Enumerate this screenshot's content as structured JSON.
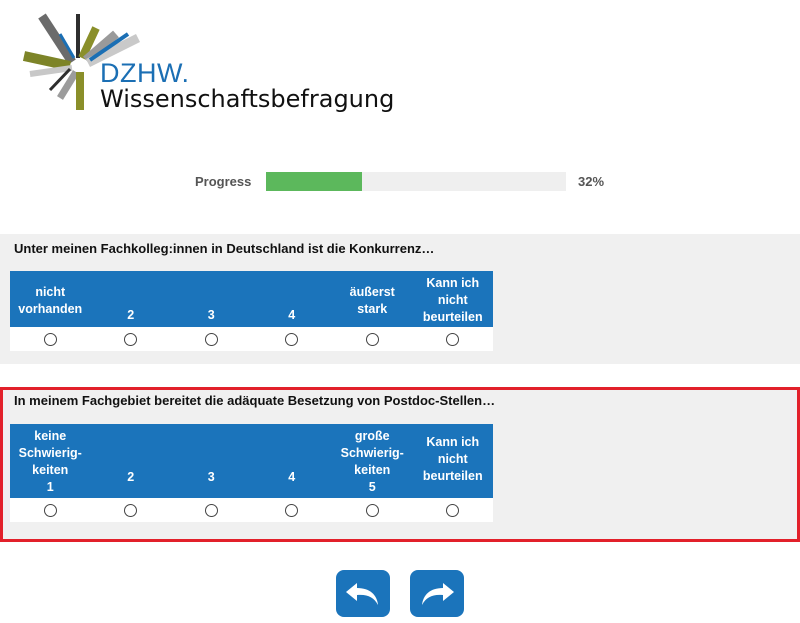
{
  "logo": {
    "brand": "DZHW.",
    "subtitle": "Wissenschaftsbefragung"
  },
  "progress": {
    "label": "Progress",
    "value": 0.32,
    "percent_text": "32%"
  },
  "questions": [
    {
      "text": "Unter meinen Fachkolleg:innen in Deutschland ist die Konkurrenz…",
      "options": [
        "nicht\nvorhanden",
        "2",
        "3",
        "4",
        "äußerst\nstark",
        "Kann ich\nnicht\nbeurteilen"
      ]
    },
    {
      "text": "In meinem Fachgebiet bereitet die adäquate Besetzung von Postdoc-Stellen…",
      "options": [
        "keine\nSchwierig-\nkeiten\n1",
        "2",
        "3",
        "4",
        "große\nSchwierig-\nkeiten\n5",
        "Kann ich\nnicht\nbeurteilen"
      ]
    }
  ],
  "nav": {
    "back_icon": "back-arrow-icon",
    "next_icon": "forward-arrow-icon"
  },
  "colors": {
    "brand_blue": "#1b74bb",
    "progress_green": "#5cb85c",
    "highlight_red": "#e2202a"
  }
}
